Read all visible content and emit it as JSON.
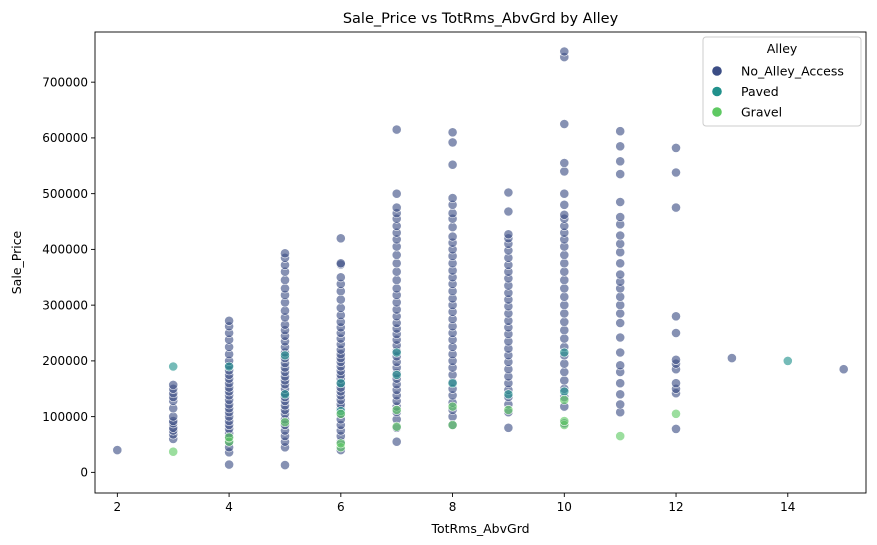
{
  "chart_data": {
    "type": "scatter",
    "title": "Sale_Price vs TotRms_AbvGrd by Alley",
    "xlabel": "TotRms_AbvGrd",
    "ylabel": "Sale_Price",
    "xlim": [
      1.6,
      15.4
    ],
    "ylim": [
      -37000,
      790000
    ],
    "xticks": [
      2,
      4,
      6,
      8,
      10,
      12,
      14
    ],
    "yticks": [
      0,
      100000,
      200000,
      300000,
      400000,
      500000,
      600000,
      700000
    ],
    "grid": false,
    "legend": {
      "title": "Alley",
      "placement": "top-right"
    },
    "series": [
      {
        "name": "No_Alley_Access",
        "color": "#3b4d85",
        "points": [
          [
            2,
            40000
          ],
          [
            3,
            60000
          ],
          [
            3,
            68000
          ],
          [
            3,
            75000
          ],
          [
            3,
            80000
          ],
          [
            3,
            88000
          ],
          [
            3,
            92000
          ],
          [
            3,
            100000
          ],
          [
            3,
            115000
          ],
          [
            3,
            128000
          ],
          [
            3,
            135000
          ],
          [
            3,
            142000
          ],
          [
            3,
            150000
          ],
          [
            3,
            157000
          ],
          [
            4,
            14000
          ],
          [
            4,
            36000
          ],
          [
            4,
            45000
          ],
          [
            4,
            55000
          ],
          [
            4,
            62000
          ],
          [
            4,
            70000
          ],
          [
            4,
            78000
          ],
          [
            4,
            85000
          ],
          [
            4,
            92000
          ],
          [
            4,
            100000
          ],
          [
            4,
            108000
          ],
          [
            4,
            115000
          ],
          [
            4,
            122000
          ],
          [
            4,
            130000
          ],
          [
            4,
            138000
          ],
          [
            4,
            145000
          ],
          [
            4,
            152000
          ],
          [
            4,
            160000
          ],
          [
            4,
            168000
          ],
          [
            4,
            175000
          ],
          [
            4,
            183000
          ],
          [
            4,
            192000
          ],
          [
            4,
            200000
          ],
          [
            4,
            212000
          ],
          [
            4,
            225000
          ],
          [
            4,
            238000
          ],
          [
            4,
            250000
          ],
          [
            4,
            262000
          ],
          [
            4,
            272000
          ],
          [
            5,
            13000
          ],
          [
            5,
            45000
          ],
          [
            5,
            55000
          ],
          [
            5,
            65000
          ],
          [
            5,
            75000
          ],
          [
            5,
            85000
          ],
          [
            5,
            95000
          ],
          [
            5,
            105000
          ],
          [
            5,
            112000
          ],
          [
            5,
            120000
          ],
          [
            5,
            128000
          ],
          [
            5,
            135000
          ],
          [
            5,
            142000
          ],
          [
            5,
            150000
          ],
          [
            5,
            158000
          ],
          [
            5,
            165000
          ],
          [
            5,
            172000
          ],
          [
            5,
            180000
          ],
          [
            5,
            188000
          ],
          [
            5,
            196000
          ],
          [
            5,
            205000
          ],
          [
            5,
            215000
          ],
          [
            5,
            225000
          ],
          [
            5,
            235000
          ],
          [
            5,
            245000
          ],
          [
            5,
            255000
          ],
          [
            5,
            265000
          ],
          [
            5,
            278000
          ],
          [
            5,
            290000
          ],
          [
            5,
            305000
          ],
          [
            5,
            318000
          ],
          [
            5,
            330000
          ],
          [
            5,
            345000
          ],
          [
            5,
            360000
          ],
          [
            5,
            372000
          ],
          [
            5,
            385000
          ],
          [
            5,
            393000
          ],
          [
            6,
            40000
          ],
          [
            6,
            55000
          ],
          [
            6,
            65000
          ],
          [
            6,
            75000
          ],
          [
            6,
            85000
          ],
          [
            6,
            95000
          ],
          [
            6,
            105000
          ],
          [
            6,
            115000
          ],
          [
            6,
            122000
          ],
          [
            6,
            130000
          ],
          [
            6,
            138000
          ],
          [
            6,
            145000
          ],
          [
            6,
            152000
          ],
          [
            6,
            160000
          ],
          [
            6,
            168000
          ],
          [
            6,
            175000
          ],
          [
            6,
            182000
          ],
          [
            6,
            190000
          ],
          [
            6,
            198000
          ],
          [
            6,
            205000
          ],
          [
            6,
            212000
          ],
          [
            6,
            220000
          ],
          [
            6,
            230000
          ],
          [
            6,
            240000
          ],
          [
            6,
            250000
          ],
          [
            6,
            260000
          ],
          [
            6,
            270000
          ],
          [
            6,
            282000
          ],
          [
            6,
            295000
          ],
          [
            6,
            310000
          ],
          [
            6,
            325000
          ],
          [
            6,
            338000
          ],
          [
            6,
            350000
          ],
          [
            6,
            373000
          ],
          [
            6,
            375000
          ],
          [
            6,
            420000
          ],
          [
            7,
            55000
          ],
          [
            7,
            80000
          ],
          [
            7,
            95000
          ],
          [
            7,
            108000
          ],
          [
            7,
            118000
          ],
          [
            7,
            128000
          ],
          [
            7,
            138000
          ],
          [
            7,
            148000
          ],
          [
            7,
            158000
          ],
          [
            7,
            168000
          ],
          [
            7,
            178000
          ],
          [
            7,
            188000
          ],
          [
            7,
            198000
          ],
          [
            7,
            208000
          ],
          [
            7,
            218000
          ],
          [
            7,
            228000
          ],
          [
            7,
            238000
          ],
          [
            7,
            248000
          ],
          [
            7,
            258000
          ],
          [
            7,
            268000
          ],
          [
            7,
            280000
          ],
          [
            7,
            292000
          ],
          [
            7,
            305000
          ],
          [
            7,
            318000
          ],
          [
            7,
            330000
          ],
          [
            7,
            345000
          ],
          [
            7,
            360000
          ],
          [
            7,
            375000
          ],
          [
            7,
            390000
          ],
          [
            7,
            405000
          ],
          [
            7,
            418000
          ],
          [
            7,
            430000
          ],
          [
            7,
            442000
          ],
          [
            7,
            455000
          ],
          [
            7,
            465000
          ],
          [
            7,
            475000
          ],
          [
            7,
            500000
          ],
          [
            7,
            615000
          ],
          [
            8,
            85000
          ],
          [
            8,
            100000
          ],
          [
            8,
            112000
          ],
          [
            8,
            125000
          ],
          [
            8,
            138000
          ],
          [
            8,
            150000
          ],
          [
            8,
            162000
          ],
          [
            8,
            175000
          ],
          [
            8,
            188000
          ],
          [
            8,
            200000
          ],
          [
            8,
            212000
          ],
          [
            8,
            225000
          ],
          [
            8,
            238000
          ],
          [
            8,
            250000
          ],
          [
            8,
            262000
          ],
          [
            8,
            275000
          ],
          [
            8,
            288000
          ],
          [
            8,
            300000
          ],
          [
            8,
            312000
          ],
          [
            8,
            325000
          ],
          [
            8,
            338000
          ],
          [
            8,
            350000
          ],
          [
            8,
            362000
          ],
          [
            8,
            375000
          ],
          [
            8,
            388000
          ],
          [
            8,
            400000
          ],
          [
            8,
            412000
          ],
          [
            8,
            423000
          ],
          [
            8,
            440000
          ],
          [
            8,
            455000
          ],
          [
            8,
            465000
          ],
          [
            8,
            480000
          ],
          [
            8,
            492000
          ],
          [
            8,
            552000
          ],
          [
            8,
            592000
          ],
          [
            8,
            610000
          ],
          [
            9,
            80000
          ],
          [
            9,
            108000
          ],
          [
            9,
            122000
          ],
          [
            9,
            135000
          ],
          [
            9,
            148000
          ],
          [
            9,
            160000
          ],
          [
            9,
            172000
          ],
          [
            9,
            185000
          ],
          [
            9,
            198000
          ],
          [
            9,
            210000
          ],
          [
            9,
            222000
          ],
          [
            9,
            235000
          ],
          [
            9,
            248000
          ],
          [
            9,
            260000
          ],
          [
            9,
            272000
          ],
          [
            9,
            285000
          ],
          [
            9,
            298000
          ],
          [
            9,
            310000
          ],
          [
            9,
            322000
          ],
          [
            9,
            335000
          ],
          [
            9,
            348000
          ],
          [
            9,
            360000
          ],
          [
            9,
            372000
          ],
          [
            9,
            385000
          ],
          [
            9,
            398000
          ],
          [
            9,
            410000
          ],
          [
            9,
            420000
          ],
          [
            9,
            427000
          ],
          [
            9,
            468000
          ],
          [
            9,
            502000
          ],
          [
            10,
            88000
          ],
          [
            10,
            118000
          ],
          [
            10,
            135000
          ],
          [
            10,
            150000
          ],
          [
            10,
            165000
          ],
          [
            10,
            180000
          ],
          [
            10,
            195000
          ],
          [
            10,
            210000
          ],
          [
            10,
            225000
          ],
          [
            10,
            240000
          ],
          [
            10,
            255000
          ],
          [
            10,
            270000
          ],
          [
            10,
            285000
          ],
          [
            10,
            300000
          ],
          [
            10,
            315000
          ],
          [
            10,
            330000
          ],
          [
            10,
            345000
          ],
          [
            10,
            360000
          ],
          [
            10,
            375000
          ],
          [
            10,
            390000
          ],
          [
            10,
            405000
          ],
          [
            10,
            418000
          ],
          [
            10,
            430000
          ],
          [
            10,
            442000
          ],
          [
            10,
            455000
          ],
          [
            10,
            462000
          ],
          [
            10,
            480000
          ],
          [
            10,
            500000
          ],
          [
            10,
            540000
          ],
          [
            10,
            555000
          ],
          [
            10,
            625000
          ],
          [
            10,
            745000
          ],
          [
            10,
            755000
          ],
          [
            11,
            108000
          ],
          [
            11,
            122000
          ],
          [
            11,
            140000
          ],
          [
            11,
            160000
          ],
          [
            11,
            180000
          ],
          [
            11,
            192000
          ],
          [
            11,
            215000
          ],
          [
            11,
            242000
          ],
          [
            11,
            268000
          ],
          [
            11,
            285000
          ],
          [
            11,
            300000
          ],
          [
            11,
            315000
          ],
          [
            11,
            330000
          ],
          [
            11,
            342000
          ],
          [
            11,
            355000
          ],
          [
            11,
            375000
          ],
          [
            11,
            395000
          ],
          [
            11,
            410000
          ],
          [
            11,
            425000
          ],
          [
            11,
            445000
          ],
          [
            11,
            458000
          ],
          [
            11,
            485000
          ],
          [
            11,
            535000
          ],
          [
            11,
            558000
          ],
          [
            11,
            585000
          ],
          [
            11,
            612000
          ],
          [
            12,
            78000
          ],
          [
            12,
            142000
          ],
          [
            12,
            150000
          ],
          [
            12,
            160000
          ],
          [
            12,
            185000
          ],
          [
            12,
            195000
          ],
          [
            12,
            202000
          ],
          [
            12,
            250000
          ],
          [
            12,
            280000
          ],
          [
            12,
            475000
          ],
          [
            12,
            538000
          ],
          [
            12,
            582000
          ],
          [
            13,
            205000
          ],
          [
            15,
            185000
          ]
        ]
      },
      {
        "name": "Paved",
        "color": "#21918c",
        "points": [
          [
            3,
            190000
          ],
          [
            4,
            190000
          ],
          [
            5,
            140000
          ],
          [
            5,
            210000
          ],
          [
            6,
            110000
          ],
          [
            6,
            160000
          ],
          [
            7,
            175000
          ],
          [
            7,
            215000
          ],
          [
            8,
            160000
          ],
          [
            9,
            140000
          ],
          [
            10,
            145000
          ],
          [
            10,
            215000
          ],
          [
            14,
            200000
          ]
        ]
      },
      {
        "name": "Gravel",
        "color": "#5ec962",
        "points": [
          [
            3,
            37000
          ],
          [
            4,
            55000
          ],
          [
            4,
            63000
          ],
          [
            5,
            90000
          ],
          [
            6,
            45000
          ],
          [
            6,
            52000
          ],
          [
            6,
            105000
          ],
          [
            7,
            82000
          ],
          [
            7,
            112000
          ],
          [
            8,
            85000
          ],
          [
            8,
            118000
          ],
          [
            9,
            112000
          ],
          [
            10,
            85000
          ],
          [
            10,
            92000
          ],
          [
            10,
            130000
          ],
          [
            11,
            65000
          ],
          [
            12,
            105000
          ]
        ]
      }
    ]
  }
}
